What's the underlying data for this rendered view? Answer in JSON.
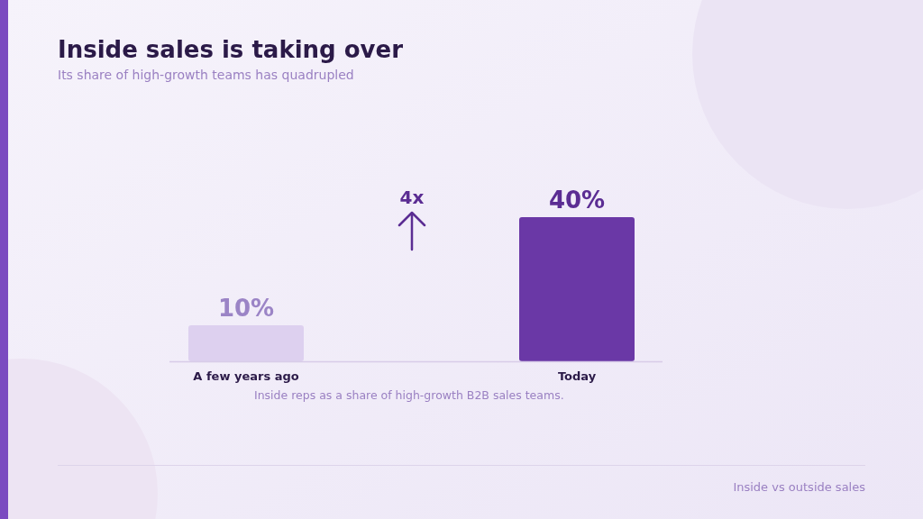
{
  "chart_data": {
    "type": "bar",
    "title": "Inside sales is taking over",
    "subtitle": "Its share of high-growth teams has quadrupled",
    "categories": [
      "A few years ago",
      "Today"
    ],
    "values": [
      10,
      40
    ],
    "colors": [
      "#ddd0ef",
      "#6a38a6"
    ],
    "value_labels": [
      "10%",
      "40%"
    ],
    "annotations": [
      "4x",
      "Inside reps as a share of high-growth B2B sales teams.",
      "Inside vs outside sales"
    ]
  }
}
